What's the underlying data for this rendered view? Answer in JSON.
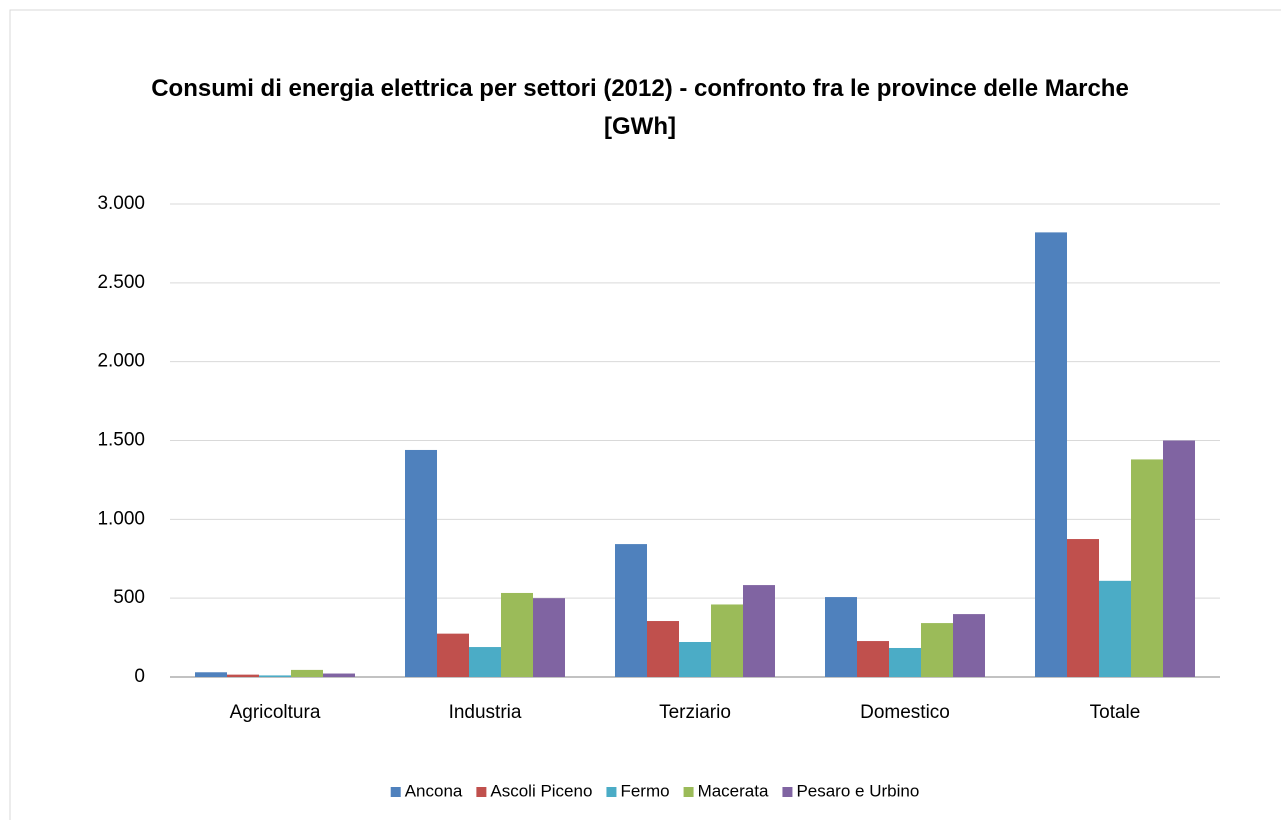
{
  "chart_data": {
    "type": "bar",
    "title": "Consumi di energia elettrica per settori (2012) - confronto fra le province delle Marche [GWh]",
    "categories": [
      "Agricoltura",
      "Industria",
      "Terziario",
      "Domestico",
      "Totale"
    ],
    "series": [
      {
        "name": "Ancona",
        "color": "#4f81bd",
        "values": [
          30,
          1440,
          843,
          507,
          2820
        ]
      },
      {
        "name": "Ascoli Piceno",
        "color": "#c0504d",
        "values": [
          15,
          275,
          355,
          228,
          875
        ]
      },
      {
        "name": "Fermo",
        "color": "#4bacc6",
        "values": [
          10,
          190,
          222,
          184,
          610
        ]
      },
      {
        "name": "Macerata",
        "color": "#9bbb59",
        "values": [
          45,
          533,
          460,
          342,
          1380
        ]
      },
      {
        "name": "Pesaro e Urbino",
        "color": "#8064a2",
        "values": [
          22,
          500,
          583,
          399,
          1500
        ]
      }
    ],
    "ylim": [
      0,
      3000
    ],
    "yticks": [
      0,
      500,
      {
        "value": 1000,
        "label": "1.000"
      },
      {
        "value": 1500,
        "label": "1.500"
      },
      {
        "value": 2000,
        "label": "2.000"
      },
      {
        "value": 2500,
        "label": "2.500"
      },
      {
        "value": 3000,
        "label": "3.000"
      }
    ],
    "grid": true,
    "legend": "bottom"
  }
}
